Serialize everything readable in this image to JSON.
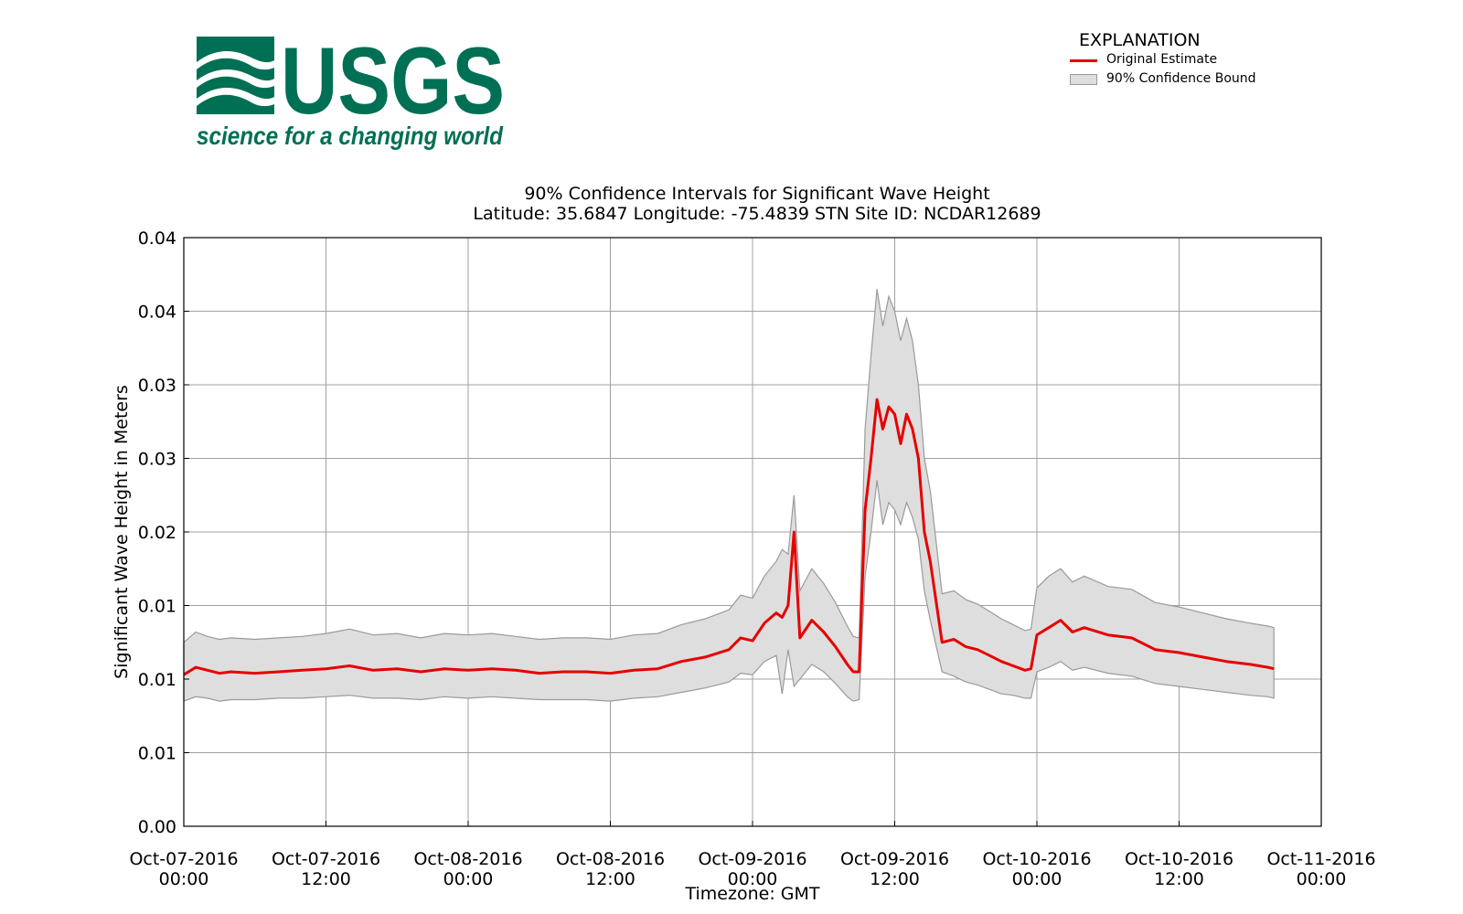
{
  "logo": {
    "wordmark": "USGS",
    "tagline": "science for a changing world",
    "color": "#007054"
  },
  "legend": {
    "title": "EXPLANATION",
    "estimate_label": "Original Estimate",
    "bound_label": "90% Confidence Bound"
  },
  "colors": {
    "estimate_line": "#e60000",
    "bound_fill": "#dedede",
    "bound_edge": "#9a9a9a",
    "grid": "#a0a0a0"
  },
  "chart_data": {
    "type": "area",
    "title": "90% Confidence Intervals for Significant Wave Height",
    "subtitle": "Latitude: 35.6847 Longitude: -75.4839 STN Site ID: NCDAR12689",
    "xlabel": "Timezone: GMT",
    "ylabel": "Significant Wave Height in Meters",
    "x_unit": "hours from Oct-07-2016 00:00 GMT",
    "xlim": [
      0,
      96
    ],
    "ylim": [
      0.0,
      0.04
    ],
    "grid": true,
    "legend_position": "top-right, outside plot",
    "x_ticks": [
      {
        "value": 0,
        "label": [
          "Oct-07-2016",
          "00:00"
        ]
      },
      {
        "value": 12,
        "label": [
          "Oct-07-2016",
          "12:00"
        ]
      },
      {
        "value": 24,
        "label": [
          "Oct-08-2016",
          "00:00"
        ]
      },
      {
        "value": 36,
        "label": [
          "Oct-08-2016",
          "12:00"
        ]
      },
      {
        "value": 48,
        "label": [
          "Oct-09-2016",
          "00:00"
        ]
      },
      {
        "value": 60,
        "label": [
          "Oct-09-2016",
          "12:00"
        ]
      },
      {
        "value": 72,
        "label": [
          "Oct-10-2016",
          "00:00"
        ]
      },
      {
        "value": 84,
        "label": [
          "Oct-10-2016",
          "12:00"
        ]
      },
      {
        "value": 96,
        "label": [
          "Oct-11-2016",
          "00:00"
        ]
      }
    ],
    "y_ticks": [
      {
        "value": 0.0,
        "label": "0.00"
      },
      {
        "value": 0.005,
        "label": "0.01"
      },
      {
        "value": 0.01,
        "label": "0.01"
      },
      {
        "value": 0.015,
        "label": "0.01"
      },
      {
        "value": 0.02,
        "label": "0.02"
      },
      {
        "value": 0.025,
        "label": "0.03"
      },
      {
        "value": 0.03,
        "label": "0.03"
      },
      {
        "value": 0.035,
        "label": "0.04"
      },
      {
        "value": 0.04,
        "label": "0.04"
      }
    ],
    "x": [
      0,
      1,
      2,
      3,
      4,
      6,
      8,
      10,
      12,
      14,
      16,
      18,
      20,
      22,
      24,
      26,
      28,
      30,
      32,
      34,
      36,
      38,
      40,
      42,
      44,
      46,
      47,
      48,
      49,
      50,
      50.5,
      51,
      51.5,
      52,
      53,
      54,
      55,
      56,
      56.5,
      57,
      57.5,
      58,
      58.5,
      59,
      59.5,
      60,
      60.5,
      61,
      61.5,
      62,
      62.5,
      63,
      64,
      65,
      66,
      67,
      68,
      69,
      70,
      71,
      71.5,
      72,
      73,
      74,
      75,
      76,
      78,
      80,
      82,
      84,
      86,
      88,
      90,
      92,
      91.5
    ],
    "series": [
      {
        "name": "Original Estimate",
        "values": [
          0.0103,
          0.0108,
          0.0106,
          0.0104,
          0.0105,
          0.0104,
          0.0105,
          0.0106,
          0.0107,
          0.0109,
          0.0106,
          0.0107,
          0.0105,
          0.0107,
          0.0106,
          0.0107,
          0.0106,
          0.0104,
          0.0105,
          0.0105,
          0.0104,
          0.0106,
          0.0107,
          0.0112,
          0.0115,
          0.012,
          0.0128,
          0.0126,
          0.0138,
          0.0145,
          0.0142,
          0.015,
          0.02,
          0.0128,
          0.014,
          0.0132,
          0.0122,
          0.011,
          0.0105,
          0.0105,
          0.0215,
          0.025,
          0.029,
          0.027,
          0.0285,
          0.028,
          0.026,
          0.028,
          0.027,
          0.025,
          0.02,
          0.018,
          0.0125,
          0.0127,
          0.0122,
          0.012,
          0.0116,
          0.0112,
          0.0109,
          0.0106,
          0.0107,
          0.013,
          0.0135,
          0.014,
          0.0132,
          0.0135,
          0.013,
          0.0128,
          0.012,
          0.0118,
          0.0115,
          0.0112,
          0.011,
          0.0107,
          0.0108
        ]
      },
      {
        "name": "90% Confidence Bound (lower)",
        "values": [
          0.0085,
          0.0088,
          0.0087,
          0.0085,
          0.0086,
          0.0086,
          0.0087,
          0.0087,
          0.0088,
          0.0089,
          0.0087,
          0.0087,
          0.0086,
          0.0088,
          0.0087,
          0.0088,
          0.0087,
          0.0086,
          0.0086,
          0.0086,
          0.0085,
          0.0087,
          0.0088,
          0.0091,
          0.0094,
          0.0098,
          0.0104,
          0.0103,
          0.0112,
          0.0116,
          0.009,
          0.012,
          0.0095,
          0.01,
          0.011,
          0.0105,
          0.0097,
          0.0088,
          0.0085,
          0.0086,
          0.017,
          0.02,
          0.0235,
          0.0205,
          0.022,
          0.0215,
          0.0205,
          0.022,
          0.021,
          0.0195,
          0.016,
          0.014,
          0.0105,
          0.0102,
          0.0098,
          0.0096,
          0.0093,
          0.009,
          0.0089,
          0.0087,
          0.0087,
          0.0105,
          0.0108,
          0.0112,
          0.0106,
          0.0108,
          0.0104,
          0.0102,
          0.0097,
          0.0095,
          0.0093,
          0.0091,
          0.0089,
          0.0087,
          0.0088
        ]
      },
      {
        "name": "90% Confidence Bound (upper)",
        "values": [
          0.0125,
          0.0132,
          0.0129,
          0.0127,
          0.0128,
          0.0127,
          0.0128,
          0.0129,
          0.0131,
          0.0134,
          0.013,
          0.0131,
          0.0128,
          0.0131,
          0.013,
          0.0131,
          0.0129,
          0.0127,
          0.0128,
          0.0128,
          0.0127,
          0.013,
          0.0131,
          0.0137,
          0.0141,
          0.0147,
          0.0157,
          0.0155,
          0.017,
          0.018,
          0.0188,
          0.0185,
          0.0225,
          0.016,
          0.0175,
          0.0165,
          0.0152,
          0.0136,
          0.0129,
          0.0128,
          0.027,
          0.032,
          0.0365,
          0.034,
          0.036,
          0.035,
          0.033,
          0.0345,
          0.033,
          0.03,
          0.025,
          0.0228,
          0.0158,
          0.016,
          0.0154,
          0.0151,
          0.0146,
          0.0141,
          0.0137,
          0.0133,
          0.0134,
          0.0162,
          0.017,
          0.0175,
          0.0166,
          0.017,
          0.0163,
          0.0161,
          0.0152,
          0.0149,
          0.0145,
          0.0141,
          0.0138,
          0.0135,
          0.0136
        ]
      }
    ]
  }
}
